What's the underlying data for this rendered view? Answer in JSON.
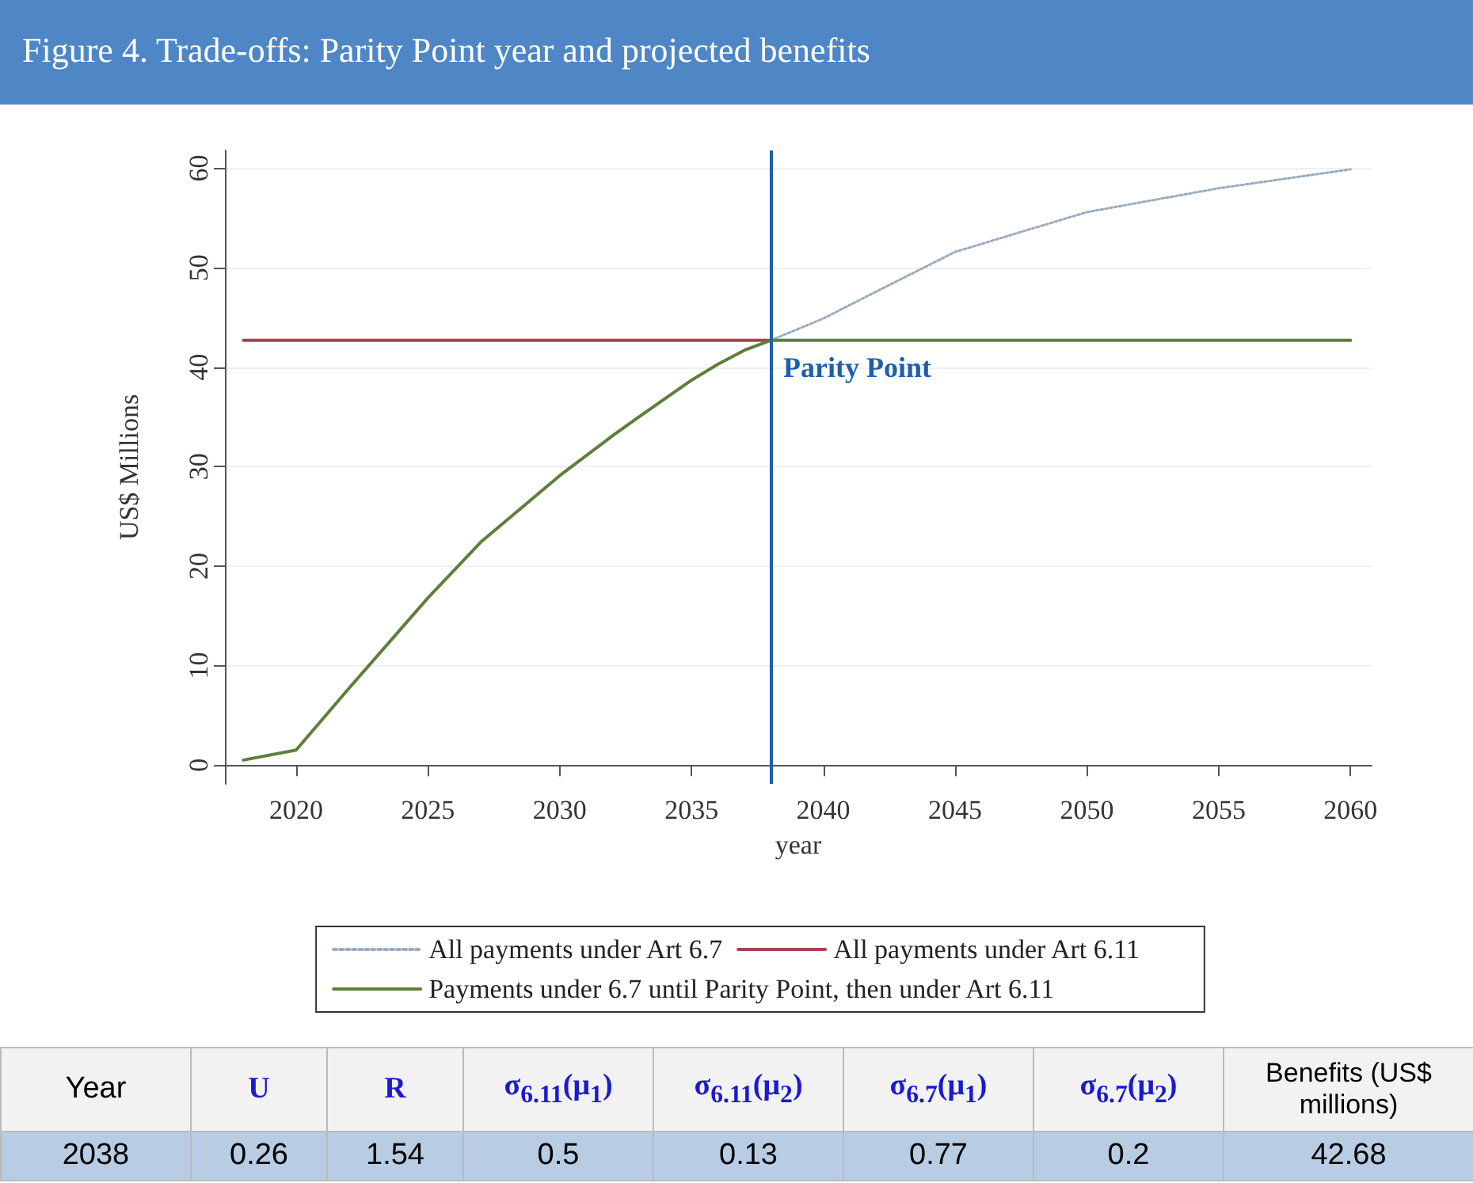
{
  "chart_data": {
    "type": "line",
    "title": "Figure 4. Trade-offs: Parity Point year and projected benefits",
    "xlabel": "year",
    "ylabel": "US$ Millions",
    "xlim": [
      2017.3,
      2060.8
    ],
    "xticks": [
      2020,
      2025,
      2030,
      2035,
      2040,
      2045,
      2050,
      2055,
      2060
    ],
    "ylim": [
      -1.9,
      61.8
    ],
    "yticks": [
      0,
      10,
      20,
      30,
      40,
      50,
      60
    ],
    "grid": "y",
    "legend": "bottom",
    "marker": "none",
    "series": [
      {
        "name": "All payments under Art 6.7",
        "color": "#9aabbd",
        "line_style": "dotted",
        "x": [
          2038,
          2040,
          2042,
          2045,
          2050,
          2055,
          2060
        ],
        "values": [
          42.7,
          44.9,
          47.6,
          51.6,
          55.6,
          58.0,
          59.9
        ]
      },
      {
        "name": "All payments under Art 6.11",
        "color": "#a8404e",
        "line_style": "solid",
        "x": [
          2018,
          2038
        ],
        "values": [
          42.7,
          42.7
        ]
      },
      {
        "name": "Payments under 6.7 until Parity Point, then under Art 6.11",
        "color": "#5d7f3a",
        "line_style": "solid",
        "x": [
          2018,
          2020,
          2022,
          2025,
          2027,
          2030,
          2032,
          2033,
          2035,
          2036,
          2037,
          2038,
          2060
        ],
        "values": [
          0.5,
          1.5,
          7.7,
          16.8,
          22.4,
          29.1,
          33.1,
          35.0,
          38.7,
          40.3,
          41.7,
          42.7,
          42.7
        ]
      }
    ],
    "ref_lines": [
      {
        "axis": "x",
        "value": 2038,
        "label": "Parity Point",
        "color": "#1f5fa8",
        "line_style": "solid"
      }
    ],
    "annotations": [
      "Year",
      "U",
      "R",
      "σ$_{6.11}$(μ$_{1}$)",
      "σ$_{6.11}$(μ$_{2}$)",
      "σ$_{6.7}$(μ$_{1}$)",
      "σ$_{6.7}$(μ$_{2}$)",
      "Benefits (US$ millions)",
      "2038",
      "0.26",
      "1.54",
      "0.5",
      "0.13",
      "0.77",
      "0.2",
      "42.68"
    ]
  }
}
